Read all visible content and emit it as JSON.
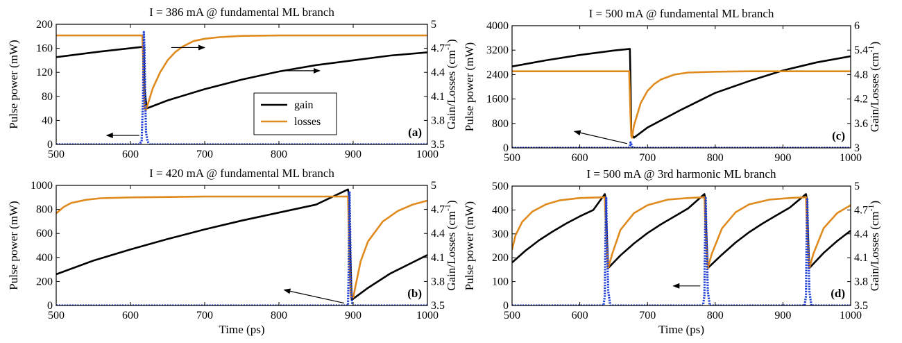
{
  "chart_data": [
    {
      "type": "line",
      "panel": "(a)",
      "title": "I = 386 mA @ fundamental ML branch",
      "xlabel": "",
      "ylabel": "Pulse power (mW)",
      "y2label": "Gain/Losses (cm",
      "y2label_sup": "-1",
      "y2label_close": ")",
      "xlim": [
        500,
        1000
      ],
      "ylim": [
        0,
        200
      ],
      "y2lim": [
        3.5,
        5
      ],
      "xticks": [
        500,
        600,
        700,
        800,
        900,
        1000
      ],
      "yticks": [
        0,
        40,
        80,
        120,
        160,
        200
      ],
      "y2ticks": [
        3.5,
        3.8,
        4.1,
        4.4,
        4.7,
        5
      ],
      "y2tick_labels": [
        "3.5",
        "3.8",
        "4.1",
        "4.4",
        "4.7",
        "5"
      ],
      "legend": {
        "position": "center",
        "entries": [
          "gain",
          "losses"
        ]
      },
      "series": [
        {
          "name": "gain",
          "axis": "right",
          "color": "#000000",
          "style": "solid",
          "x": [
            500,
            560,
            618,
            619,
            622,
            650,
            700,
            750,
            800,
            850,
            900,
            950,
            1000
          ],
          "y": [
            4.59,
            4.66,
            4.72,
            4.2,
            3.95,
            4.05,
            4.19,
            4.31,
            4.41,
            4.49,
            4.55,
            4.61,
            4.65
          ]
        },
        {
          "name": "losses",
          "axis": "right",
          "color": "#e08a1e",
          "style": "solid",
          "x": [
            500,
            616,
            617,
            618,
            619,
            621,
            630,
            640,
            650,
            660,
            670,
            685,
            700,
            720,
            750,
            800,
            1000
          ],
          "y": [
            4.86,
            4.86,
            4.6,
            4.2,
            3.95,
            3.93,
            4.2,
            4.4,
            4.55,
            4.65,
            4.72,
            4.79,
            4.82,
            4.84,
            4.855,
            4.86,
            4.86
          ]
        },
        {
          "name": "pulse",
          "axis": "left",
          "color": "#1f3fd6",
          "style": "dotted",
          "x": [
            500,
            612,
            615,
            617,
            618,
            619,
            620,
            621,
            623,
            626,
            1000
          ],
          "y": [
            0,
            0,
            5,
            80,
            187,
            160,
            70,
            20,
            5,
            0,
            0
          ]
        }
      ],
      "arrows": [
        {
          "from": [
            655,
            4.71
          ],
          "to": [
            700,
            4.71
          ]
        },
        {
          "from": [
            808,
            4.42
          ],
          "to": [
            855,
            4.42
          ]
        },
        {
          "from": [
            612,
            15
          ],
          "to": [
            568,
            15
          ]
        }
      ]
    },
    {
      "type": "line",
      "panel": "(c)",
      "title": "I = 500 mA @ fundamental ML branch",
      "xlabel": "",
      "ylabel": "Pulse power (mW)",
      "y2label": "Gain/Losses (cm",
      "y2label_sup": "-1",
      "y2label_close": ")",
      "xlim": [
        500,
        1000
      ],
      "ylim": [
        0,
        4000
      ],
      "y2lim": [
        3,
        6
      ],
      "xticks": [
        500,
        600,
        700,
        800,
        900,
        1000
      ],
      "yticks": [
        0,
        800,
        1600,
        2400,
        3200,
        4000
      ],
      "y2ticks": [
        3,
        3.6,
        4.2,
        4.8,
        5.4,
        6
      ],
      "y2tick_labels": [
        "3",
        "3.6",
        "4.2",
        "4.8",
        "5.4",
        "6"
      ],
      "series": [
        {
          "name": "gain",
          "axis": "right",
          "color": "#000000",
          "style": "solid",
          "x": [
            500,
            550,
            600,
            650,
            674,
            675,
            676,
            680,
            700,
            750,
            800,
            850,
            900,
            950,
            1000
          ],
          "y": [
            5.0,
            5.15,
            5.28,
            5.39,
            5.43,
            4.6,
            3.35,
            3.25,
            3.5,
            3.94,
            4.35,
            4.64,
            4.9,
            5.1,
            5.25
          ]
        },
        {
          "name": "losses",
          "axis": "right",
          "color": "#e08a1e",
          "style": "solid",
          "x": [
            500,
            673,
            674,
            675,
            676,
            677,
            680,
            690,
            700,
            710,
            720,
            740,
            760,
            800,
            850,
            1000
          ],
          "y": [
            4.88,
            4.88,
            4.3,
            3.7,
            3.3,
            3.25,
            3.55,
            4.1,
            4.4,
            4.57,
            4.68,
            4.8,
            4.85,
            4.87,
            4.88,
            4.88
          ]
        },
        {
          "name": "pulse",
          "axis": "left",
          "color": "#1f3fd6",
          "style": "dotted",
          "x": [
            500,
            672,
            674,
            675,
            676,
            678,
            680,
            1000
          ],
          "y": [
            0,
            0,
            60,
            180,
            120,
            20,
            0,
            0
          ]
        }
      ],
      "arrows": [
        {
          "from": [
            670,
            140
          ],
          "to": [
            592,
            540
          ]
        }
      ]
    },
    {
      "type": "line",
      "panel": "(b)",
      "title": "I = 420 mA @ fundamental ML branch",
      "xlabel": "Time (ps)",
      "ylabel": "Pulse power (mW)",
      "y2label": "Gain/Losses (cm",
      "y2label_sup": "-1",
      "y2label_close": ")",
      "xlim": [
        500,
        1000
      ],
      "ylim": [
        0,
        1000
      ],
      "y2lim": [
        3.5,
        5
      ],
      "xticks": [
        500,
        600,
        700,
        800,
        900,
        1000
      ],
      "yticks": [
        0,
        200,
        400,
        600,
        800,
        1000
      ],
      "y2ticks": [
        3.5,
        3.8,
        4.1,
        4.4,
        4.7,
        5
      ],
      "y2tick_labels": [
        "3.5",
        "3.8",
        "4.1",
        "4.4",
        "4.7",
        "5"
      ],
      "series": [
        {
          "name": "gain",
          "axis": "right",
          "color": "#000000",
          "style": "solid",
          "x": [
            500,
            550,
            600,
            650,
            700,
            750,
            800,
            850,
            893,
            894,
            896,
            898,
            920,
            950,
            1000
          ],
          "y": [
            3.89,
            4.06,
            4.2,
            4.33,
            4.45,
            4.56,
            4.66,
            4.76,
            4.95,
            4.9,
            4.2,
            3.57,
            3.72,
            3.9,
            4.13
          ]
        },
        {
          "name": "losses",
          "axis": "right",
          "color": "#e08a1e",
          "style": "solid",
          "x": [
            500,
            510,
            520,
            540,
            560,
            600,
            700,
            800,
            893,
            894,
            895,
            897,
            900,
            910,
            920,
            940,
            960,
            980,
            1000
          ],
          "y": [
            4.65,
            4.73,
            4.78,
            4.82,
            4.84,
            4.85,
            4.86,
            4.86,
            4.86,
            4.5,
            4.0,
            3.6,
            3.6,
            4.05,
            4.3,
            4.55,
            4.68,
            4.76,
            4.81
          ]
        },
        {
          "name": "pulse",
          "axis": "left",
          "color": "#1f3fd6",
          "style": "dotted",
          "x": [
            500,
            893,
            894,
            895,
            896,
            897,
            899,
            1000
          ],
          "y": [
            0,
            0,
            300,
            950,
            600,
            150,
            0,
            0
          ]
        }
      ],
      "arrows": [
        {
          "from": [
            888,
            20
          ],
          "to": [
            807,
            130
          ]
        }
      ]
    },
    {
      "type": "line",
      "panel": "(d)",
      "title": "I = 500 mA @ 3rd harmonic ML branch",
      "xlabel": "Time (ps)",
      "ylabel": "Pulse power (mW)",
      "y2label": "Gain/Losses (cm",
      "y2label_sup": "-1",
      "y2label_close": ")",
      "xlim": [
        500,
        1000
      ],
      "ylim": [
        0,
        500
      ],
      "y2lim": [
        3.5,
        5
      ],
      "xticks": [
        500,
        600,
        700,
        800,
        900,
        1000
      ],
      "yticks": [
        0,
        100,
        200,
        300,
        400,
        500
      ],
      "y2ticks": [
        3.5,
        3.8,
        4.1,
        4.4,
        4.7,
        5
      ],
      "y2tick_labels": [
        "3.5",
        "3.8",
        "4.1",
        "4.4",
        "4.7",
        "5"
      ],
      "series": [
        {
          "name": "gain",
          "axis": "right",
          "color": "#000000",
          "style": "solid",
          "x": [
            500,
            520,
            540,
            560,
            580,
            600,
            620,
            637,
            638,
            640,
            642,
            660,
            680,
            700,
            720,
            740,
            760,
            784,
            785,
            787,
            789,
            810,
            830,
            850,
            870,
            890,
            910,
            934,
            935,
            937,
            939,
            960,
            980,
            1000
          ],
          "y": [
            4.04,
            4.19,
            4.32,
            4.43,
            4.53,
            4.62,
            4.7,
            4.9,
            4.85,
            4.4,
            3.97,
            4.13,
            4.28,
            4.41,
            4.52,
            4.62,
            4.72,
            4.9,
            4.85,
            4.4,
            3.97,
            4.14,
            4.29,
            4.42,
            4.53,
            4.63,
            4.73,
            4.9,
            4.85,
            4.4,
            3.97,
            4.16,
            4.31,
            4.44
          ]
        },
        {
          "name": "losses",
          "axis": "right",
          "color": "#e08a1e",
          "style": "solid",
          "x": [
            500,
            505,
            515,
            530,
            550,
            570,
            600,
            637,
            638,
            640,
            642,
            648,
            660,
            680,
            700,
            730,
            760,
            784,
            785,
            787,
            789,
            795,
            810,
            830,
            850,
            880,
            910,
            934,
            935,
            937,
            939,
            945,
            960,
            980,
            1000
          ],
          "y": [
            4.2,
            4.38,
            4.55,
            4.68,
            4.77,
            4.82,
            4.85,
            4.86,
            4.6,
            4.2,
            3.97,
            4.15,
            4.45,
            4.66,
            4.76,
            4.83,
            4.85,
            4.86,
            4.6,
            4.2,
            3.97,
            4.15,
            4.47,
            4.67,
            4.77,
            4.83,
            4.85,
            4.86,
            4.6,
            4.2,
            3.97,
            4.15,
            4.47,
            4.66,
            4.76
          ]
        },
        {
          "name": "pulse",
          "axis": "left",
          "color": "#1f3fd6",
          "style": "dotted",
          "x": [
            500,
            635,
            637,
            638,
            639,
            640,
            642,
            645,
            782,
            784,
            785,
            786,
            787,
            789,
            792,
            932,
            934,
            935,
            936,
            937,
            939,
            942,
            1000
          ],
          "y": [
            0,
            0,
            40,
            300,
            450,
            300,
            60,
            0,
            0,
            40,
            300,
            450,
            300,
            60,
            0,
            0,
            40,
            300,
            450,
            300,
            60,
            0,
            0
          ]
        }
      ],
      "arrows": [
        {
          "from": [
            778,
            82
          ],
          "to": [
            738,
            82
          ]
        }
      ]
    }
  ]
}
